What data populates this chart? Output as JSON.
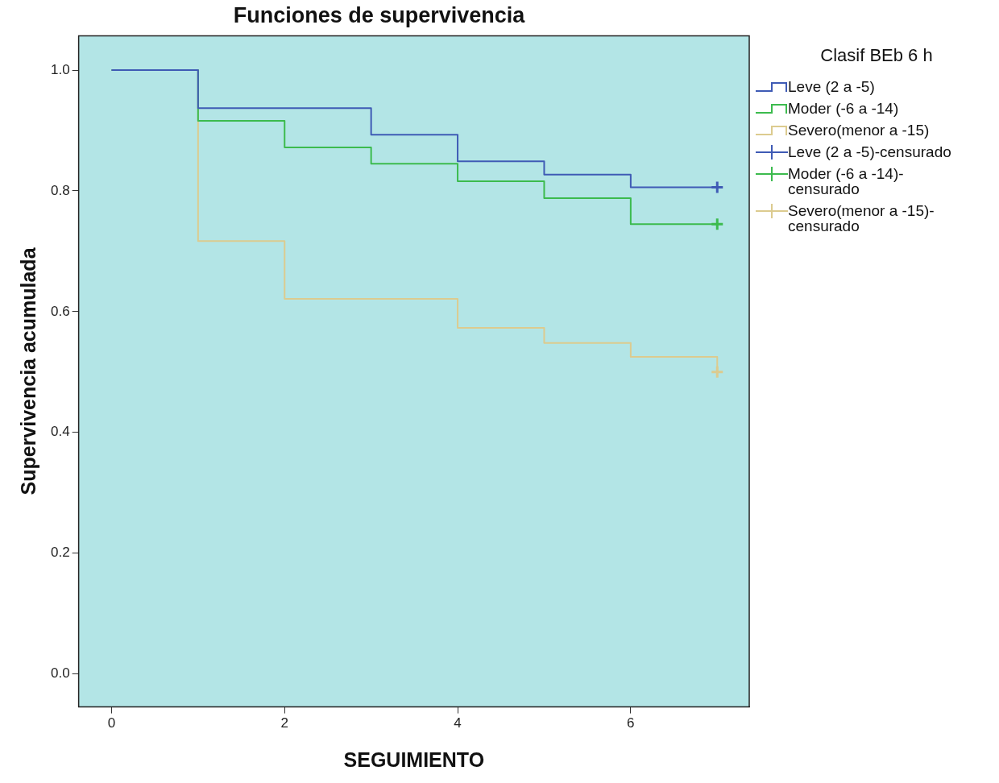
{
  "chart_data": {
    "type": "step",
    "title": "Funciones de supervivencia",
    "xlabel": "SEGUIMIENTO",
    "ylabel": "Supervivencia acumulada",
    "legend_title": "Clasif BEb 6 h",
    "legend": "right",
    "grid": false,
    "xlim": [
      -0.38,
      7.37
    ],
    "xticks": [
      0,
      2,
      4,
      6
    ],
    "ylim": [
      -0.055,
      1.057
    ],
    "yticks": [
      {
        "value": 0,
        "label": "0.0"
      },
      {
        "value": 0.2,
        "label": "0.2"
      },
      {
        "value": 0.4,
        "label": "0.4"
      },
      {
        "value": 0.6,
        "label": "0.6"
      },
      {
        "value": 0.8,
        "label": "0.8"
      },
      {
        "value": 1,
        "label": "1.0"
      }
    ],
    "series": [
      {
        "name": "Leve (2 a -5)",
        "marker": "none",
        "color": "#3f5bb5",
        "x": [
          0,
          1,
          3,
          4,
          5,
          6,
          7
        ],
        "values": [
          1,
          0.937,
          0.893,
          0.849,
          0.827,
          0.806,
          0.806
        ]
      },
      {
        "name": "Moder (-6 a -14)",
        "marker": "none",
        "color": "#3cbb4e",
        "x": [
          0,
          1,
          2,
          3,
          4,
          5,
          6,
          7
        ],
        "values": [
          1,
          0.916,
          0.872,
          0.845,
          0.816,
          0.788,
          0.745,
          0.745
        ]
      },
      {
        "name": "Severo(menor a -15)",
        "marker": "none",
        "color": "#dccb8f",
        "x": [
          0,
          1,
          2,
          4,
          5,
          6,
          7
        ],
        "values": [
          1,
          0.717,
          0.621,
          0.573,
          0.548,
          0.525,
          0.5
        ]
      },
      {
        "name": "Leve (2 a -5)-censurado",
        "type": "scatter",
        "marker": "cross",
        "color": "#3f5bb5",
        "x": [
          7
        ],
        "values": [
          0.806
        ]
      },
      {
        "name": "Moder (-6 a -14)-censurado",
        "type": "scatter",
        "marker": "cross",
        "color": "#3cbb4e",
        "x": [
          7
        ],
        "values": [
          0.745
        ]
      },
      {
        "name": "Severo(menor a -15)-censurado",
        "type": "scatter",
        "marker": "cross",
        "color": "#dccb8f",
        "x": [
          7
        ],
        "values": [
          0.5
        ]
      }
    ]
  }
}
